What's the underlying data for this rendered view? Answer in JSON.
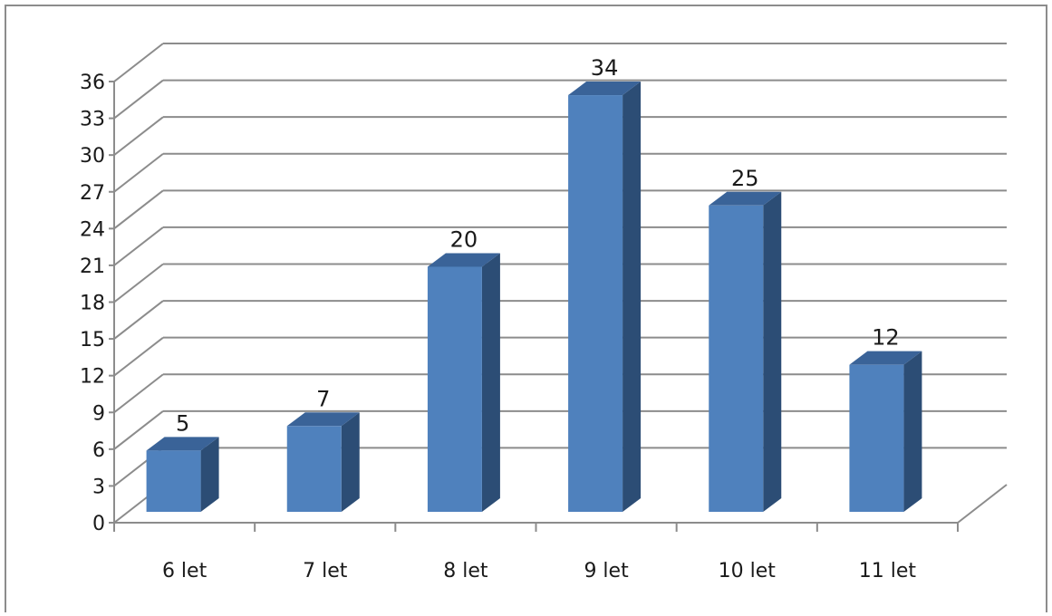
{
  "chart_data": {
    "type": "bar",
    "title": "",
    "xlabel": "",
    "ylabel": "",
    "categories": [
      "6 let",
      "7 let",
      "8 let",
      "9 let",
      "10 let",
      "11 let"
    ],
    "values": [
      5,
      7,
      20,
      34,
      25,
      12
    ],
    "data_labels": [
      "5",
      "7",
      "20",
      "34",
      "25",
      "12"
    ],
    "ylim": [
      0,
      36
    ],
    "ytick_step": 3,
    "yticks": [
      "0",
      "3",
      "6",
      "9",
      "12",
      "15",
      "18",
      "21",
      "24",
      "27",
      "30",
      "33",
      "36"
    ],
    "grid": true,
    "legend": "none",
    "style": "3d-column"
  },
  "colors": {
    "bar_front": "#4f81bd",
    "bar_side": "#2c4d75",
    "bar_top": "#3a6398",
    "grid": "#8c8c8c",
    "frame": "#8c8c8c"
  }
}
